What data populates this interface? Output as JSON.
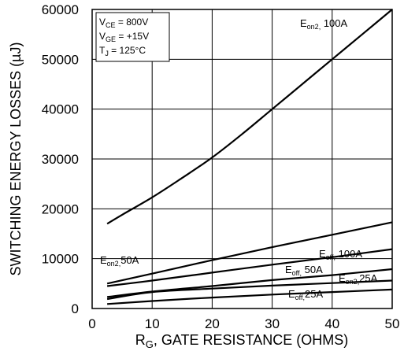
{
  "chart_data": {
    "type": "line",
    "xlabel": {
      "main": "R",
      "sub": "G",
      "rest": ", GATE RESISTANCE (OHMS)"
    },
    "ylabel": "SWITCHING ENERGY LOSSES (µJ)",
    "xlim": [
      0,
      50
    ],
    "ylim": [
      0,
      60000
    ],
    "xticks": [
      "0",
      "10",
      "20",
      "30",
      "40",
      "50"
    ],
    "yticks": [
      "0",
      "10000",
      "20000",
      "30000",
      "40000",
      "50000",
      "60000"
    ],
    "grid": true,
    "conditions": [
      {
        "main": "V",
        "sub": "CE",
        "rest": " =  800V"
      },
      {
        "main": "V",
        "sub": "GE",
        "rest": " =  +15V"
      },
      {
        "main": "T",
        "sub": "J",
        "rest": " = 125°C"
      }
    ],
    "series": [
      {
        "name": "Eon2, 100A",
        "label": {
          "main": "E",
          "sub": "on2,",
          "rest": " 100A"
        },
        "x": [
          2.5,
          5,
          10,
          15,
          20,
          25,
          30,
          35,
          40,
          45,
          50
        ],
        "values": [
          17000,
          18800,
          22300,
          26200,
          30300,
          35000,
          40000,
          45000,
          50000,
          55000,
          60000
        ]
      },
      {
        "name": "Eon2, 50A",
        "label": {
          "main": "E",
          "sub": "on2,",
          "rest": "50A"
        },
        "x": [
          2.5,
          10,
          20,
          30,
          40,
          50
        ],
        "values": [
          5000,
          7000,
          9700,
          12300,
          14800,
          17300
        ]
      },
      {
        "name": "Eoff, 100A",
        "label": {
          "main": "E",
          "sub": "off,",
          "rest": " 100A"
        },
        "x": [
          2.5,
          10,
          20,
          30,
          40,
          50
        ],
        "values": [
          4500,
          5600,
          7200,
          8800,
          10300,
          11900
        ]
      },
      {
        "name": "Eoff, 50A",
        "label": {
          "main": "E",
          "sub": "off,",
          "rest": " 50A"
        },
        "x": [
          2.5,
          10,
          20,
          30,
          40,
          50
        ],
        "values": [
          2300,
          3400,
          4500,
          5700,
          6700,
          7900
        ]
      },
      {
        "name": "Eon2, 25A",
        "label": {
          "main": "E",
          "sub": "on2,",
          "rest": "25A"
        },
        "x": [
          2.5,
          10,
          20,
          30,
          40,
          50
        ],
        "values": [
          1900,
          3300,
          4000,
          4600,
          5100,
          5600
        ]
      },
      {
        "name": "Eoff, 25A",
        "label": {
          "main": "E",
          "sub": "off,",
          "rest": "25A"
        },
        "x": [
          2.5,
          10,
          20,
          30,
          40,
          50
        ],
        "values": [
          900,
          1500,
          2200,
          2800,
          3300,
          3800
        ]
      }
    ]
  }
}
